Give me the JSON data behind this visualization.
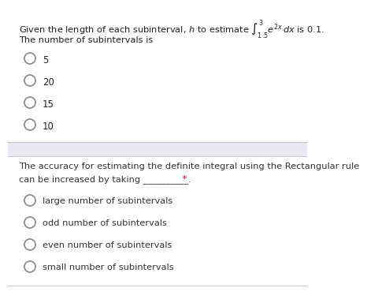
{
  "bg_color": "#ffffff",
  "divider_color": "#dddde8",
  "text_color": "#222222",
  "q2_text_color": "#333333",
  "radio_color": "#888888",
  "star_color": "#cc0000",
  "section1": {
    "line1": "Given the length of each subinterval, $h$ to estimate $\\int_{1.5}^{3} e^{2x}\\,dx$ is 0.1.",
    "line2": "The number of subintervals is",
    "options": [
      "5",
      "20",
      "15",
      "10"
    ]
  },
  "section2": {
    "line1": "The accuracy for estimating the definite integral using the Rectangular rule",
    "line2": "can be increased by taking __________.",
    "star": "*",
    "options": [
      "large number of subintervals",
      "odd number of subintervals",
      "even number of subintervals",
      "small number of subintervals"
    ]
  }
}
